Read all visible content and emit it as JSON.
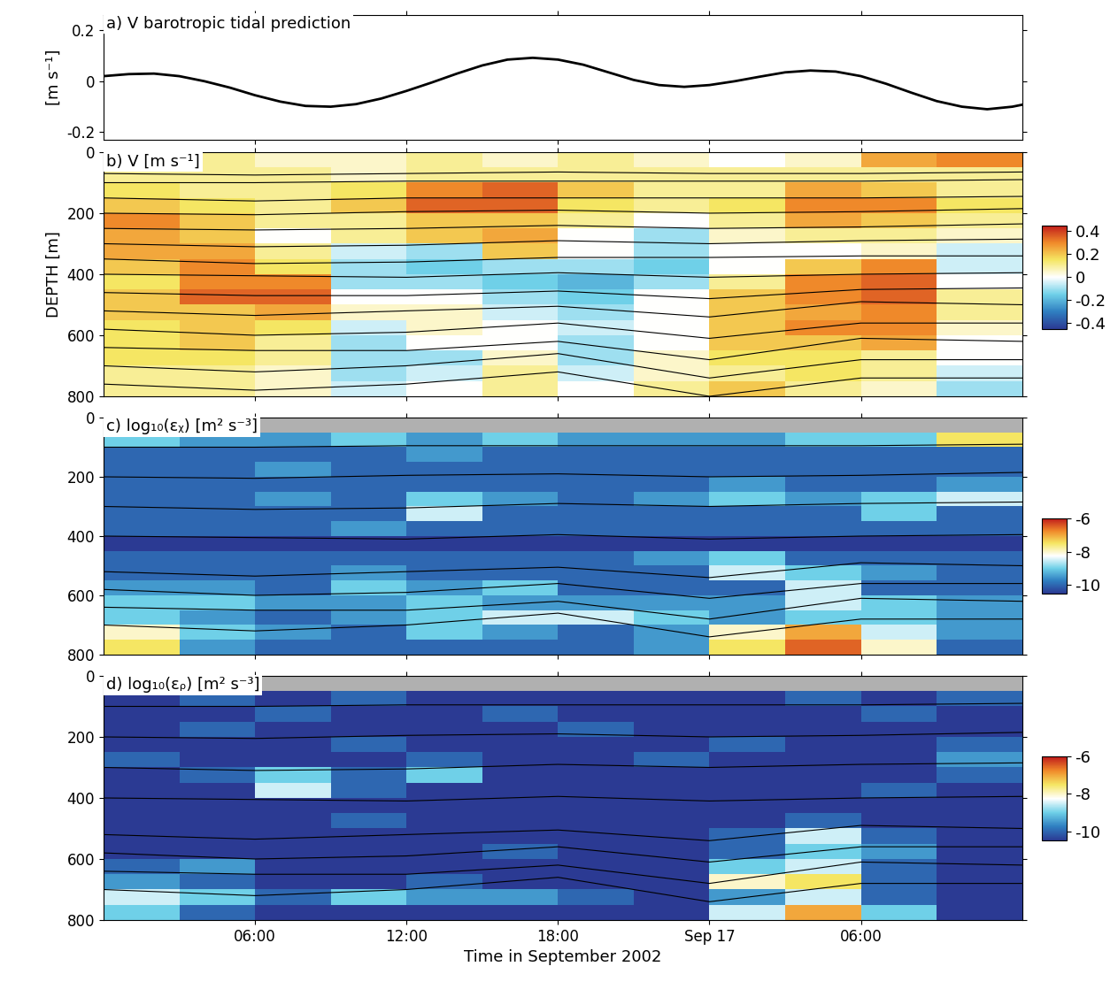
{
  "chart_data": [
    {
      "type": "line",
      "title": "a) V barotropic tidal prediction",
      "ylabel": "[m s⁻¹]",
      "color": "#000000",
      "x": [
        0,
        1,
        2,
        3,
        4,
        5,
        6,
        7,
        8,
        9,
        10,
        11,
        12,
        13,
        14,
        15,
        16,
        17,
        18,
        19,
        20,
        21,
        22,
        23,
        24,
        25,
        26,
        27,
        28,
        29,
        30,
        31,
        32,
        33,
        34,
        35,
        36,
        36.4
      ],
      "values": [
        0.02,
        0.028,
        0.03,
        0.02,
        0.0,
        -0.025,
        -0.055,
        -0.08,
        -0.097,
        -0.1,
        -0.09,
        -0.068,
        -0.038,
        -0.005,
        0.03,
        0.062,
        0.085,
        0.092,
        0.085,
        0.065,
        0.035,
        0.005,
        -0.015,
        -0.022,
        -0.015,
        0.0,
        0.018,
        0.035,
        0.042,
        0.038,
        0.02,
        -0.01,
        -0.045,
        -0.078,
        -0.1,
        -0.11,
        -0.1,
        -0.092
      ],
      "xlim": [
        0,
        36.4
      ],
      "ylim": [
        -0.23,
        0.26
      ],
      "yticks": [
        -0.2,
        0,
        0.2
      ],
      "xticks": [
        {
          "value": 6,
          "label": "06:00"
        },
        {
          "value": 12,
          "label": "12:00"
        },
        {
          "value": 18,
          "label": "18:00"
        },
        {
          "value": 24,
          "label": "Sep 17"
        },
        {
          "value": 30,
          "label": "06:00"
        }
      ],
      "tick_labels": "y"
    },
    {
      "type": "heatmap",
      "title": "b) V [m s⁻¹]",
      "ylabel": "DEPTH [m]",
      "x_edges": [
        0,
        3,
        6,
        9,
        12,
        15,
        18,
        21,
        24,
        27,
        30,
        33,
        36.4
      ],
      "y_edges": [
        0,
        50,
        100,
        150,
        200,
        250,
        300,
        350,
        400,
        450,
        500,
        550,
        600,
        650,
        700,
        750,
        800
      ],
      "cells": [
        [
          0.1,
          0.1,
          0.05,
          0.05,
          0.1,
          0.05,
          0.1,
          0.05,
          0.0,
          0.05,
          0.25,
          0.3
        ],
        [
          0.1,
          0.1,
          0.1,
          0.05,
          0.1,
          0.1,
          0.1,
          0.1,
          0.1,
          0.1,
          0.1,
          0.1
        ],
        [
          0.15,
          0.1,
          0.1,
          0.15,
          0.3,
          0.35,
          0.2,
          0.1,
          0.1,
          0.25,
          0.2,
          0.1
        ],
        [
          0.2,
          0.15,
          0.1,
          0.2,
          0.35,
          0.35,
          0.15,
          0.1,
          0.15,
          0.3,
          0.3,
          0.15
        ],
        [
          0.3,
          0.2,
          0.1,
          0.1,
          0.2,
          0.2,
          0.1,
          0.0,
          0.1,
          0.25,
          0.2,
          0.1
        ],
        [
          0.25,
          0.2,
          0.0,
          0.1,
          0.2,
          0.25,
          0.0,
          -0.1,
          0.05,
          0.1,
          0.1,
          0.05
        ],
        [
          0.25,
          0.25,
          0.1,
          -0.05,
          -0.1,
          0.2,
          0.0,
          -0.1,
          0.0,
          0.0,
          0.05,
          -0.05
        ],
        [
          0.2,
          0.3,
          0.15,
          -0.1,
          -0.15,
          -0.1,
          -0.1,
          -0.15,
          0.0,
          0.2,
          0.3,
          -0.05
        ],
        [
          0.15,
          0.3,
          0.3,
          -0.1,
          -0.1,
          -0.15,
          -0.2,
          -0.1,
          0.1,
          0.3,
          0.35,
          0.0
        ],
        [
          0.2,
          0.35,
          0.35,
          0.0,
          0.0,
          -0.1,
          -0.15,
          0.0,
          0.2,
          0.3,
          0.35,
          0.1
        ],
        [
          0.2,
          0.2,
          0.25,
          0.05,
          0.05,
          -0.05,
          -0.1,
          0.0,
          0.2,
          0.25,
          0.3,
          0.1
        ],
        [
          0.15,
          0.2,
          0.15,
          -0.05,
          0.05,
          0.0,
          -0.05,
          0.0,
          0.2,
          0.3,
          0.3,
          0.05
        ],
        [
          0.15,
          0.2,
          0.1,
          -0.1,
          0.0,
          0.0,
          -0.1,
          0.0,
          0.2,
          0.2,
          0.25,
          0.0
        ],
        [
          0.15,
          0.15,
          0.1,
          -0.1,
          -0.1,
          0.05,
          -0.1,
          0.05,
          0.15,
          0.15,
          0.1,
          0.0
        ],
        [
          0.1,
          0.1,
          0.05,
          -0.1,
          -0.05,
          0.1,
          -0.05,
          0.05,
          0.1,
          0.15,
          0.1,
          -0.05
        ],
        [
          0.1,
          0.1,
          0.05,
          -0.05,
          0.0,
          0.1,
          0.0,
          0.1,
          0.2,
          0.1,
          0.05,
          -0.1
        ]
      ],
      "colorbar": {
        "range": [
          -0.45,
          0.45
        ],
        "ticks": [
          -0.4,
          -0.2,
          0,
          0.2,
          0.4
        ]
      },
      "contour_x": [
        0,
        6,
        12,
        18,
        24,
        30,
        36.4
      ],
      "contours": [
        [
          70,
          75,
          70,
          65,
          70,
          70,
          65
        ],
        [
          100,
          100,
          95,
          95,
          95,
          95,
          90
        ],
        [
          150,
          160,
          150,
          150,
          150,
          150,
          145
        ],
        [
          200,
          205,
          195,
          190,
          200,
          195,
          185
        ],
        [
          250,
          255,
          250,
          240,
          250,
          245,
          235
        ],
        [
          300,
          310,
          305,
          290,
          300,
          290,
          285
        ],
        [
          350,
          365,
          360,
          345,
          345,
          340,
          340
        ],
        [
          400,
          405,
          410,
          395,
          410,
          400,
          395
        ],
        [
          460,
          470,
          470,
          455,
          480,
          450,
          445
        ],
        [
          520,
          535,
          520,
          505,
          540,
          490,
          500
        ],
        [
          580,
          600,
          590,
          560,
          610,
          560,
          560
        ],
        [
          640,
          650,
          650,
          620,
          680,
          610,
          620
        ],
        [
          700,
          720,
          700,
          660,
          740,
          680,
          680
        ],
        [
          760,
          780,
          760,
          720,
          800,
          740,
          740
        ]
      ],
      "xlim": [
        0,
        36.4
      ],
      "ylim": [
        800,
        0
      ],
      "yticks": [
        0,
        200,
        400,
        600,
        800
      ],
      "xticks": [
        {
          "value": 6,
          "label": "06:00"
        },
        {
          "value": 12,
          "label": "12:00"
        },
        {
          "value": 18,
          "label": "18:00"
        },
        {
          "value": 24,
          "label": "Sep 17"
        },
        {
          "value": 30,
          "label": "06:00"
        }
      ],
      "tick_labels": "y"
    },
    {
      "type": "heatmap",
      "title": "c) log₁₀(εᵪ) [m² s⁻³]",
      "x_edges": [
        0,
        3,
        6,
        9,
        12,
        15,
        18,
        21,
        24,
        27,
        30,
        33,
        36.4
      ],
      "y_edges": [
        0,
        50,
        100,
        150,
        200,
        250,
        300,
        350,
        400,
        450,
        500,
        550,
        600,
        650,
        700,
        750,
        800
      ],
      "cells": [
        [
          null,
          null,
          null,
          null,
          null,
          null,
          null,
          null,
          null,
          null,
          null,
          null
        ],
        [
          -9,
          -9.5,
          -9.5,
          -9,
          -9.5,
          -9,
          -9.5,
          -9.5,
          -9.5,
          -9,
          -9,
          -7.5
        ],
        [
          -10,
          -10,
          -10,
          -10,
          -9.5,
          -10,
          -10,
          -10,
          -10,
          -10,
          -10,
          -10
        ],
        [
          -10,
          -10,
          -9.5,
          -10,
          -10,
          -10,
          -10,
          -10,
          -10,
          -10,
          -10,
          -10
        ],
        [
          -10,
          -10,
          -10,
          -10,
          -10,
          -10,
          -10,
          -10,
          -9.5,
          -10,
          -10,
          -9.5
        ],
        [
          -10,
          -10,
          -9.5,
          -10,
          -9,
          -9.5,
          -10,
          -9.5,
          -9,
          -9.5,
          -9,
          -8.5
        ],
        [
          -10,
          -10,
          -10,
          -10,
          -8.5,
          -10,
          -10,
          -10,
          -10,
          -10,
          -9,
          -10
        ],
        [
          -10,
          -10,
          -10,
          -9.5,
          -10,
          -10,
          -10,
          -10,
          -10,
          -10,
          -10,
          -10
        ],
        [
          -10.5,
          -10.5,
          -10.5,
          -10.5,
          -10.5,
          -10.5,
          -10.5,
          -10.5,
          -10.5,
          -10.5,
          -10.5,
          -10.5
        ],
        [
          -10,
          -10,
          -10,
          -10,
          -10,
          -10,
          -10,
          -9.5,
          -9,
          -10,
          -10,
          -10
        ],
        [
          -10,
          -10,
          -10,
          -9.5,
          -10,
          -10,
          -10,
          -10,
          -8.5,
          -9,
          -9.5,
          -10
        ],
        [
          -9.5,
          -9.5,
          -10,
          -9,
          -9.5,
          -9,
          -10,
          -10,
          -10,
          -8.5,
          -10,
          -10
        ],
        [
          -9,
          -9,
          -9.5,
          -9.5,
          -9,
          -9.5,
          -9.5,
          -9.5,
          -9.5,
          -8.5,
          -9,
          -9.5
        ],
        [
          -9,
          -9.5,
          -10,
          -9.5,
          -9,
          -8.5,
          -8.5,
          -9,
          -9.5,
          -9,
          -9,
          -9.5
        ],
        [
          -8,
          -9,
          -9.5,
          -10,
          -9,
          -9.5,
          -10,
          -9.5,
          -8,
          -7,
          -8.5,
          -9.5
        ],
        [
          -7.5,
          -9.5,
          -10,
          -10,
          -10,
          -10,
          -10,
          -9.5,
          -7.5,
          -6.5,
          -8,
          -10
        ]
      ],
      "colorbar": {
        "range": [
          -10.5,
          -6
        ],
        "ticks": [
          -10,
          -8,
          -6
        ]
      },
      "contour_x": [
        0,
        6,
        12,
        18,
        24,
        30,
        36.4
      ],
      "contours": [
        [
          100,
          100,
          95,
          95,
          95,
          95,
          90
        ],
        [
          200,
          205,
          195,
          190,
          200,
          195,
          185
        ],
        [
          300,
          310,
          305,
          290,
          300,
          290,
          285
        ],
        [
          400,
          405,
          410,
          395,
          410,
          400,
          395
        ],
        [
          520,
          535,
          520,
          505,
          540,
          490,
          500
        ],
        [
          580,
          600,
          590,
          560,
          610,
          560,
          560
        ],
        [
          640,
          650,
          650,
          620,
          680,
          610,
          620
        ],
        [
          700,
          720,
          700,
          660,
          740,
          680,
          680
        ]
      ],
      "xlim": [
        0,
        36.4
      ],
      "ylim": [
        800,
        0
      ],
      "yticks": [
        0,
        200,
        400,
        600,
        800
      ],
      "xticks": [
        {
          "value": 6,
          "label": "06:00"
        },
        {
          "value": 12,
          "label": "12:00"
        },
        {
          "value": 18,
          "label": "18:00"
        },
        {
          "value": 24,
          "label": "Sep 17"
        },
        {
          "value": 30,
          "label": "06:00"
        }
      ],
      "tick_labels": "y"
    },
    {
      "type": "heatmap",
      "title": "d) log₁₀(εᵨ) [m² s⁻³]",
      "xlabel": "Time in September 2002",
      "x_edges": [
        0,
        3,
        6,
        9,
        12,
        15,
        18,
        21,
        24,
        27,
        30,
        33,
        36.4
      ],
      "y_edges": [
        0,
        50,
        100,
        150,
        200,
        250,
        300,
        350,
        400,
        450,
        500,
        550,
        600,
        650,
        700,
        750,
        800
      ],
      "cells": [
        [
          null,
          null,
          null,
          null,
          null,
          null,
          null,
          null,
          null,
          null,
          null,
          null
        ],
        [
          -10.5,
          -10,
          -10.5,
          -10,
          -10.5,
          -10.5,
          -10.5,
          -10.5,
          -10.5,
          -10,
          -10.5,
          -10
        ],
        [
          -10.5,
          -10.5,
          -10,
          -10.5,
          -10.5,
          -10,
          -10.5,
          -10.5,
          -10.5,
          -10.5,
          -10,
          -10.5
        ],
        [
          -10.5,
          -10,
          -10.5,
          -10.5,
          -10.5,
          -10.5,
          -10,
          -10.5,
          -10.5,
          -10.5,
          -10.5,
          -10.5
        ],
        [
          -10.5,
          -10.5,
          -10.5,
          -10,
          -10.5,
          -10.5,
          -10.5,
          -10.5,
          -10,
          -10.5,
          -10.5,
          -10
        ],
        [
          -10,
          -10.5,
          -10.5,
          -10.5,
          -10,
          -10.5,
          -10.5,
          -10,
          -10.5,
          -10.5,
          -10.5,
          -9.5
        ],
        [
          -10.5,
          -10,
          -9,
          -10,
          -9,
          -10.5,
          -10.5,
          -10.5,
          -10.5,
          -10.5,
          -10.5,
          -10
        ],
        [
          -10.5,
          -10.5,
          -8.5,
          -10,
          -10.5,
          -10.5,
          -10.5,
          -10.5,
          -10.5,
          -10.5,
          -10,
          -10.5
        ],
        [
          -10.5,
          -10.5,
          -10.5,
          -10.5,
          -10.5,
          -10.5,
          -10.5,
          -10.5,
          -10.5,
          -10.5,
          -10.5,
          -10.5
        ],
        [
          -10.5,
          -10.5,
          -10.5,
          -10,
          -10.5,
          -10.5,
          -10.5,
          -10.5,
          -10.5,
          -10,
          -10.5,
          -10.5
        ],
        [
          -10.5,
          -10.5,
          -10.5,
          -10.5,
          -10.5,
          -10.5,
          -10.5,
          -10.5,
          -10,
          -8.5,
          -10,
          -10.5
        ],
        [
          -10.5,
          -10.5,
          -10.5,
          -10.5,
          -10.5,
          -10,
          -10.5,
          -10.5,
          -10,
          -9,
          -9.5,
          -10.5
        ],
        [
          -10,
          -9.5,
          -10.5,
          -10.5,
          -10.5,
          -10.5,
          -10.5,
          -10.5,
          -9,
          -8.5,
          -10,
          -10.5
        ],
        [
          -9.5,
          -10,
          -10.5,
          -10.5,
          -10,
          -10.5,
          -10.5,
          -10.5,
          -8,
          -7.5,
          -10,
          -10.5
        ],
        [
          -8.5,
          -9,
          -10,
          -9,
          -9.5,
          -9.5,
          -10,
          -10.5,
          -9.5,
          -8.5,
          -10,
          -10.5
        ],
        [
          -9,
          -10,
          -10.5,
          -10.5,
          -10.5,
          -10.5,
          -10.5,
          -10.5,
          -8.5,
          -7,
          -9,
          -10.5
        ]
      ],
      "colorbar": {
        "range": [
          -10.5,
          -6
        ],
        "ticks": [
          -10,
          -8,
          -6
        ]
      },
      "contour_x": [
        0,
        6,
        12,
        18,
        24,
        30,
        36.4
      ],
      "contours": [
        [
          100,
          100,
          95,
          95,
          95,
          95,
          90
        ],
        [
          200,
          205,
          195,
          190,
          200,
          195,
          185
        ],
        [
          300,
          310,
          305,
          290,
          300,
          290,
          285
        ],
        [
          400,
          405,
          410,
          395,
          410,
          400,
          395
        ],
        [
          520,
          535,
          520,
          505,
          540,
          490,
          500
        ],
        [
          580,
          600,
          590,
          560,
          610,
          560,
          560
        ],
        [
          640,
          650,
          650,
          620,
          680,
          610,
          620
        ],
        [
          700,
          720,
          700,
          660,
          740,
          680,
          680
        ]
      ],
      "xlim": [
        0,
        36.4
      ],
      "ylim": [
        800,
        0
      ],
      "yticks": [
        0,
        200,
        400,
        600,
        800
      ],
      "xticks": [
        {
          "value": 6,
          "label": "06:00"
        },
        {
          "value": 12,
          "label": "12:00"
        },
        {
          "value": 18,
          "label": "18:00"
        },
        {
          "value": 24,
          "label": "Sep 17"
        },
        {
          "value": 30,
          "label": "06:00"
        }
      ]
    }
  ]
}
